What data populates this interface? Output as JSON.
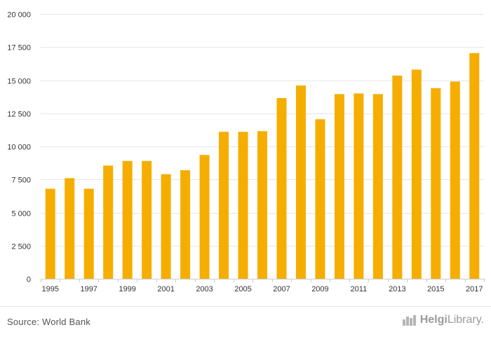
{
  "chart_data": {
    "type": "bar",
    "categories": [
      "1995",
      "1996",
      "1997",
      "1998",
      "1999",
      "2000",
      "2001",
      "2002",
      "2003",
      "2004",
      "2005",
      "2006",
      "2007",
      "2008",
      "2009",
      "2010",
      "2011",
      "2012",
      "2013",
      "2014",
      "2015",
      "2016",
      "2017"
    ],
    "x_tick_labels": [
      "1995",
      "1997",
      "1999",
      "2001",
      "2003",
      "2005",
      "2007",
      "2009",
      "2011",
      "2013",
      "2015",
      "2017"
    ],
    "values": [
      6800,
      7600,
      6800,
      8550,
      8900,
      8900,
      7900,
      8200,
      9350,
      11100,
      11100,
      11150,
      13650,
      14600,
      12050,
      13950,
      14000,
      13950,
      15350,
      15800,
      14400,
      14900,
      17050
    ],
    "y_ticks": [
      0,
      2500,
      5000,
      7500,
      10000,
      12500,
      15000,
      17500,
      20000
    ],
    "y_tick_labels": [
      "0",
      "2 500",
      "5 000",
      "7 500",
      "10 000",
      "12 500",
      "15 000",
      "17 500",
      "20 000"
    ],
    "ylim": [
      0,
      20000
    ],
    "grid": true,
    "bar_color": "#f5ae00",
    "title": "",
    "xlabel": "",
    "ylabel": ""
  },
  "footer": {
    "source": "Source: World Bank",
    "logo_bold": "Helgi",
    "logo_light": "Library."
  }
}
